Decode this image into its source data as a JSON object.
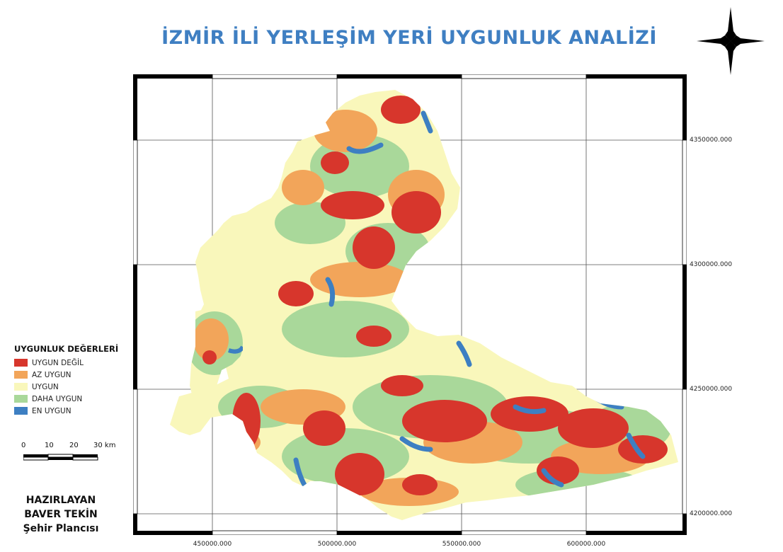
{
  "title": "İZMİR İLİ YERLEŞİM YERİ UYGUNLUK ANALİZİ",
  "north_arrow_icon": "compass-star-icon",
  "map": {
    "y_coordinates": [
      "4350000.000",
      "4300000.000",
      "4250000.000",
      "4200000.000"
    ],
    "x_coordinates": [
      "450000.000",
      "500000.000",
      "550000.000",
      "600000.000"
    ]
  },
  "legend": {
    "title": "UYGUNLUK DEĞERLERİ",
    "items": [
      {
        "label": "UYGUN DEĞİL",
        "color": "#d7362c"
      },
      {
        "label": "AZ UYGUN",
        "color": "#f2a55a"
      },
      {
        "label": "UYGUN",
        "color": "#f9f7bb"
      },
      {
        "label": "DAHA UYGUN",
        "color": "#a9d89a"
      },
      {
        "label": "EN UYGUN",
        "color": "#3d7fc2"
      }
    ]
  },
  "scalebar": {
    "labels": [
      "0",
      "10",
      "20",
      "30 km"
    ]
  },
  "prepared_by": {
    "line1": "HAZIRLAYAN",
    "line2": "BAVER TEKİN",
    "line3": "Şehir Plancısı"
  },
  "colors": {
    "title": "#3f7fc2",
    "uygun_degil": "#d7362c",
    "az_uygun": "#f2a55a",
    "uygun": "#f9f7bb",
    "daha_uygun": "#a9d89a",
    "en_uygun": "#3d7fc2"
  }
}
